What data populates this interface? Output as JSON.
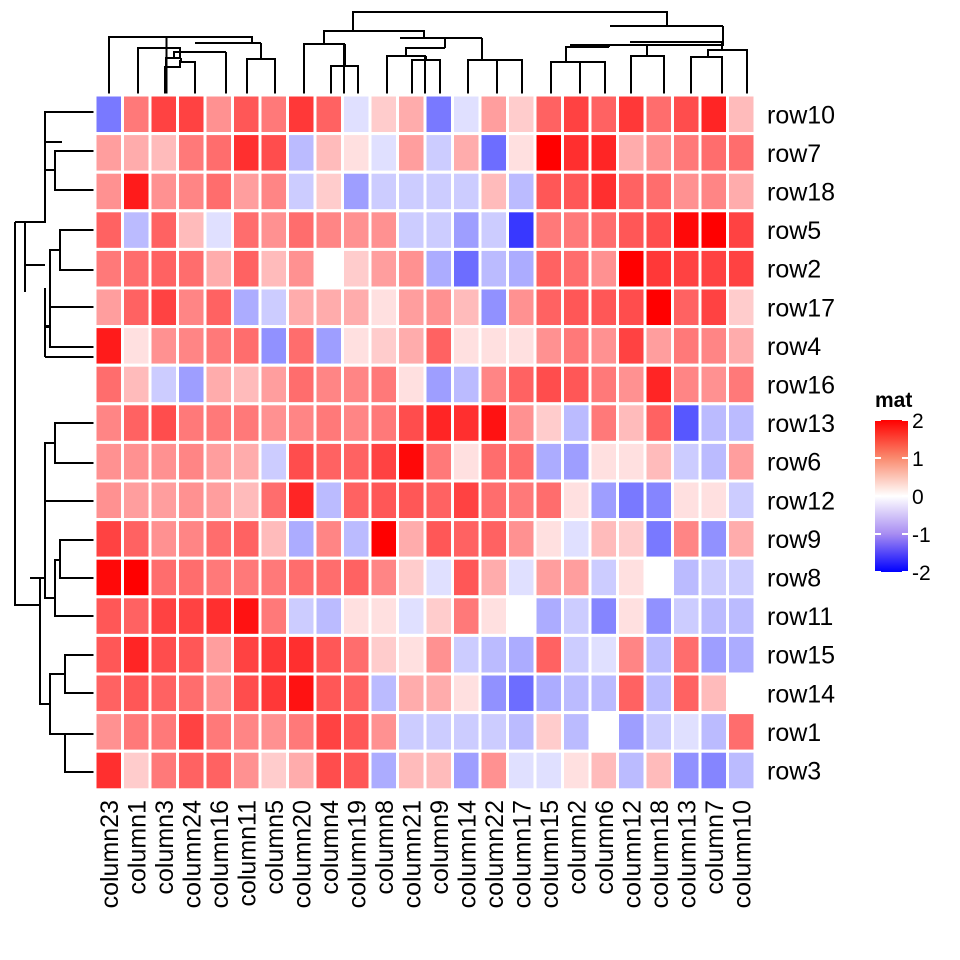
{
  "chart_data": {
    "type": "heatmap",
    "title": "",
    "legend": {
      "title": "mat",
      "ticks": [
        "2",
        "1",
        "0",
        "-1",
        "-2"
      ],
      "range": [
        -2,
        2
      ],
      "colors": {
        "low": "#0000ff",
        "mid": "#ffffff",
        "high": "#ff0000"
      },
      "placement": "right"
    },
    "rows": [
      "row10",
      "row7",
      "row18",
      "row5",
      "row2",
      "row17",
      "row4",
      "row16",
      "row13",
      "row6",
      "row12",
      "row9",
      "row8",
      "row11",
      "row15",
      "row14",
      "row1",
      "row3"
    ],
    "columns": [
      "column23",
      "column1",
      "column3",
      "column24",
      "column16",
      "column11",
      "column5",
      "column20",
      "column4",
      "column19",
      "column8",
      "column21",
      "column9",
      "column14",
      "column22",
      "column17",
      "column15",
      "column2",
      "column6",
      "column12",
      "column18",
      "column13",
      "column7",
      "column10"
    ],
    "values": [
      [
        -0.8,
        0.8,
        1.3,
        1.3,
        0.6,
        1.1,
        0.8,
        1.4,
        1.0,
        -0.1,
        0.2,
        0.4,
        -0.8,
        -0.1,
        0.5,
        0.2,
        1.0,
        1.3,
        1.0,
        1.4,
        0.9,
        1.2,
        1.6,
        0.3
      ],
      [
        0.5,
        0.4,
        0.3,
        0.8,
        0.9,
        1.5,
        1.2,
        -0.3,
        0.3,
        0.1,
        -0.1,
        0.5,
        -0.2,
        0.4,
        -0.9,
        0.1,
        2.2,
        1.5,
        1.6,
        0.4,
        0.6,
        0.8,
        0.9,
        0.9
      ],
      [
        0.6,
        1.7,
        0.6,
        0.7,
        0.9,
        0.5,
        0.7,
        -0.2,
        0.2,
        -0.5,
        -0.2,
        -0.2,
        -0.2,
        -0.2,
        0.3,
        -0.3,
        1.1,
        1.1,
        1.5,
        1.0,
        0.9,
        0.6,
        0.7,
        0.4
      ],
      [
        1.0,
        -0.3,
        1.0,
        0.3,
        -0.1,
        0.9,
        0.6,
        0.9,
        0.7,
        0.6,
        0.6,
        -0.2,
        -0.2,
        -0.5,
        -0.2,
        -1.4,
        0.8,
        0.8,
        0.9,
        1.1,
        1.2,
        1.9,
        2.1,
        1.3
      ],
      [
        0.8,
        0.9,
        1.0,
        0.9,
        0.4,
        1.0,
        0.3,
        0.6,
        0.0,
        0.2,
        0.5,
        0.6,
        -0.4,
        -0.9,
        -0.3,
        -0.4,
        1.0,
        0.9,
        0.6,
        2.0,
        1.4,
        1.3,
        1.3,
        1.3
      ],
      [
        0.5,
        1.0,
        1.3,
        0.7,
        1.0,
        -0.4,
        -0.2,
        0.4,
        0.4,
        0.4,
        0.1,
        0.5,
        0.6,
        0.3,
        -0.6,
        0.6,
        1.0,
        1.1,
        1.1,
        1.2,
        2.2,
        1.0,
        1.3,
        0.2
      ],
      [
        1.7,
        0.1,
        0.6,
        0.7,
        0.8,
        0.9,
        -0.6,
        0.9,
        -0.5,
        0.1,
        0.2,
        0.4,
        1.0,
        0.1,
        0.1,
        0.1,
        0.6,
        0.8,
        0.6,
        1.3,
        0.5,
        0.8,
        0.7,
        0.4
      ],
      [
        0.9,
        0.3,
        -0.2,
        -0.5,
        0.4,
        0.3,
        0.5,
        0.9,
        0.7,
        0.7,
        0.8,
        0.1,
        -0.5,
        -0.3,
        0.7,
        1.0,
        1.2,
        1.1,
        0.8,
        0.6,
        1.6,
        0.7,
        0.6,
        0.8
      ],
      [
        0.7,
        1.0,
        1.2,
        0.8,
        0.8,
        0.8,
        0.6,
        0.7,
        0.8,
        0.7,
        0.8,
        1.2,
        1.6,
        1.5,
        1.8,
        0.6,
        0.2,
        -0.3,
        0.8,
        0.3,
        1.0,
        -1.1,
        -0.3,
        -0.3
      ],
      [
        0.6,
        0.6,
        0.6,
        0.7,
        0.5,
        0.4,
        -0.2,
        1.2,
        1.0,
        1.0,
        1.3,
        1.9,
        0.8,
        0.1,
        0.9,
        0.9,
        -0.4,
        -0.5,
        0.1,
        0.1,
        0.3,
        -0.2,
        -0.3,
        0.5
      ],
      [
        0.6,
        0.5,
        0.5,
        0.6,
        0.5,
        0.3,
        0.9,
        1.6,
        -0.3,
        1.0,
        1.1,
        1.1,
        1.0,
        1.3,
        0.9,
        0.8,
        0.9,
        0.1,
        -0.5,
        -0.8,
        -0.7,
        0.1,
        0.1,
        -0.2
      ],
      [
        1.3,
        1.0,
        0.6,
        0.7,
        0.9,
        1.0,
        0.3,
        -0.4,
        0.7,
        -0.3,
        2.0,
        0.4,
        1.1,
        1.0,
        1.0,
        0.6,
        0.1,
        -0.1,
        0.3,
        0.2,
        -0.8,
        0.7,
        -0.6,
        0.4
      ],
      [
        1.9,
        2.2,
        0.9,
        0.9,
        0.8,
        0.8,
        0.8,
        0.9,
        0.9,
        1.0,
        0.7,
        0.2,
        -0.1,
        1.1,
        0.4,
        -0.1,
        0.5,
        0.5,
        -0.2,
        0.1,
        0.0,
        -0.3,
        -0.2,
        -0.2
      ],
      [
        1.1,
        1.0,
        1.3,
        1.3,
        1.5,
        1.8,
        0.8,
        -0.2,
        -0.3,
        0.1,
        0.1,
        -0.1,
        0.2,
        0.8,
        0.1,
        0.0,
        -0.4,
        -0.2,
        -0.7,
        0.1,
        -0.6,
        -0.2,
        -0.3,
        -0.3
      ],
      [
        1.1,
        1.6,
        1.2,
        1.1,
        0.5,
        1.3,
        1.4,
        1.5,
        1.1,
        0.9,
        0.2,
        0.1,
        0.6,
        -0.2,
        -0.3,
        -0.4,
        1.0,
        -0.2,
        -0.1,
        0.7,
        -0.3,
        0.9,
        -0.5,
        -0.4
      ],
      [
        1.0,
        1.1,
        1.0,
        0.9,
        0.6,
        1.2,
        1.4,
        1.8,
        1.1,
        1.0,
        -0.3,
        0.4,
        0.4,
        0.1,
        -0.6,
        -0.9,
        -0.4,
        -0.3,
        -0.3,
        1.0,
        -0.3,
        1.0,
        0.3,
        0.0
      ],
      [
        0.6,
        0.8,
        0.8,
        1.3,
        0.8,
        0.7,
        0.6,
        0.8,
        1.3,
        1.1,
        0.6,
        -0.2,
        -0.2,
        -0.2,
        -0.2,
        -0.3,
        0.2,
        -0.3,
        0.0,
        -0.5,
        -0.2,
        -0.1,
        -0.3,
        0.9
      ],
      [
        1.5,
        0.2,
        0.8,
        1.0,
        1.0,
        0.6,
        0.2,
        0.4,
        1.2,
        1.1,
        -0.4,
        0.3,
        0.3,
        -0.5,
        0.6,
        -0.1,
        -0.1,
        0.1,
        0.3,
        -0.3,
        0.3,
        -0.6,
        -0.7,
        -0.3
      ]
    ]
  }
}
